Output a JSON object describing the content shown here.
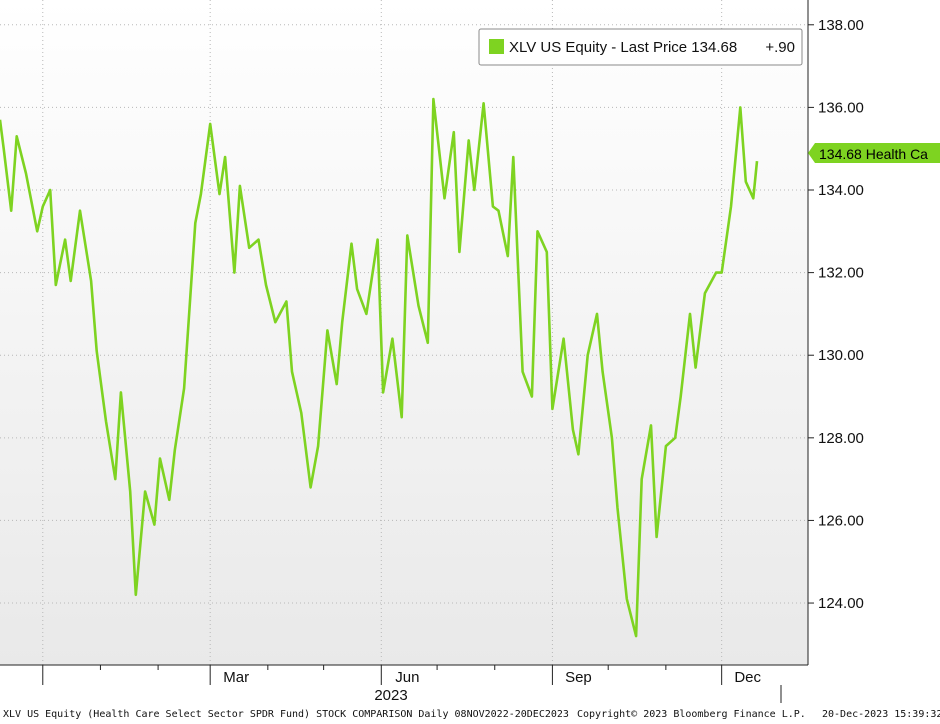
{
  "chart_data": {
    "type": "line",
    "title": "",
    "xlabel": "2023",
    "ylabel": "",
    "ylim": [
      122.5,
      138.6
    ],
    "xlim": [
      "2022-11-08",
      "2023-12-20"
    ],
    "y_ticks": [
      "124.00",
      "126.00",
      "128.00",
      "130.00",
      "132.00",
      "134.00",
      "136.00",
      "138.00"
    ],
    "x_ticks": [
      "Mar",
      "Jun",
      "Sep",
      "Dec"
    ],
    "grid": true,
    "legend_position": "top-right",
    "series": [
      {
        "name": "XLV US Equity - Last Price",
        "color": "#7ed321",
        "x": [
          "2022-11-08",
          "2022-11-10",
          "2022-11-14",
          "2022-11-17",
          "2022-11-22",
          "2022-11-28",
          "2022-12-01",
          "2022-12-05",
          "2022-12-08",
          "2022-12-13",
          "2022-12-16",
          "2022-12-21",
          "2022-12-27",
          "2022-12-30",
          "2023-01-04",
          "2023-01-09",
          "2023-01-12",
          "2023-01-17",
          "2023-01-20",
          "2023-01-25",
          "2023-01-30",
          "2023-02-02",
          "2023-02-07",
          "2023-02-10",
          "2023-02-15",
          "2023-02-21",
          "2023-02-24",
          "2023-03-01",
          "2023-03-06",
          "2023-03-09",
          "2023-03-14",
          "2023-03-17",
          "2023-03-22",
          "2023-03-27",
          "2023-03-31",
          "2023-04-05",
          "2023-04-11",
          "2023-04-14",
          "2023-04-19",
          "2023-04-24",
          "2023-04-28",
          "2023-05-03",
          "2023-05-08",
          "2023-05-11",
          "2023-05-16",
          "2023-05-19",
          "2023-05-24",
          "2023-05-30",
          "2023-06-02",
          "2023-06-07",
          "2023-06-12",
          "2023-06-15",
          "2023-06-21",
          "2023-06-26",
          "2023-06-29",
          "2023-07-05",
          "2023-07-10",
          "2023-07-13",
          "2023-07-18",
          "2023-07-21",
          "2023-07-26",
          "2023-07-31",
          "2023-08-03",
          "2023-08-08",
          "2023-08-11",
          "2023-08-16",
          "2023-08-21",
          "2023-08-24",
          "2023-08-29",
          "2023-09-01",
          "2023-09-07",
          "2023-09-12",
          "2023-09-15",
          "2023-09-20",
          "2023-09-25",
          "2023-09-28",
          "2023-10-03",
          "2023-10-06",
          "2023-10-11",
          "2023-10-16",
          "2023-10-19",
          "2023-10-24",
          "2023-10-27",
          "2023-11-01",
          "2023-11-06",
          "2023-11-09",
          "2023-11-14",
          "2023-11-17",
          "2023-11-22",
          "2023-11-28",
          "2023-12-01",
          "2023-12-06",
          "2023-12-11",
          "2023-12-14",
          "2023-12-18",
          "2023-12-20"
        ],
        "values": [
          135.7,
          135.0,
          133.5,
          135.3,
          134.4,
          133.0,
          133.6,
          134.0,
          131.7,
          132.8,
          131.8,
          133.5,
          131.8,
          130.1,
          128.4,
          127.0,
          129.1,
          126.7,
          124.2,
          126.7,
          125.9,
          127.5,
          126.5,
          127.7,
          129.2,
          133.2,
          133.9,
          135.6,
          133.9,
          134.8,
          132.0,
          134.1,
          132.6,
          132.8,
          131.7,
          130.8,
          131.3,
          129.6,
          128.6,
          126.8,
          127.8,
          130.6,
          129.3,
          130.8,
          132.7,
          131.6,
          131.0,
          132.8,
          129.1,
          130.4,
          128.5,
          132.9,
          131.2,
          130.3,
          136.2,
          133.8,
          135.4,
          132.5,
          135.2,
          134.0,
          136.1,
          133.6,
          133.5,
          132.4,
          134.8,
          129.6,
          129.0,
          133.0,
          132.5,
          128.7,
          130.4,
          128.2,
          127.6,
          130.0,
          131.0,
          129.6,
          128.0,
          126.3,
          124.1,
          123.2,
          127.0,
          128.3,
          125.6,
          127.8,
          128.0,
          129.0,
          131.0,
          129.7,
          131.5,
          132.0,
          132.0,
          133.6,
          136.0,
          134.2,
          133.8,
          134.7
        ]
      }
    ]
  },
  "legend": {
    "label": "XLV US Equity - Last Price 134.68",
    "change": "+.90"
  },
  "last_value_tag": "134.68 Health Ca",
  "footer": {
    "description": "XLV US Equity (Health Care Select Sector SPDR Fund) STOCK COMPARISON  Daily 08NOV2022-20DEC2023",
    "copyright": "Copyright© 2023 Bloomberg Finance L.P.",
    "timestamp": "20-Dec-2023 15:39:32"
  },
  "colors": {
    "plot_bg_top": "#ffffff",
    "plot_bg_bottom": "#e9e9e9",
    "line": "#7ed321",
    "gridline": "#b8b8b8",
    "axis": "#222222"
  }
}
